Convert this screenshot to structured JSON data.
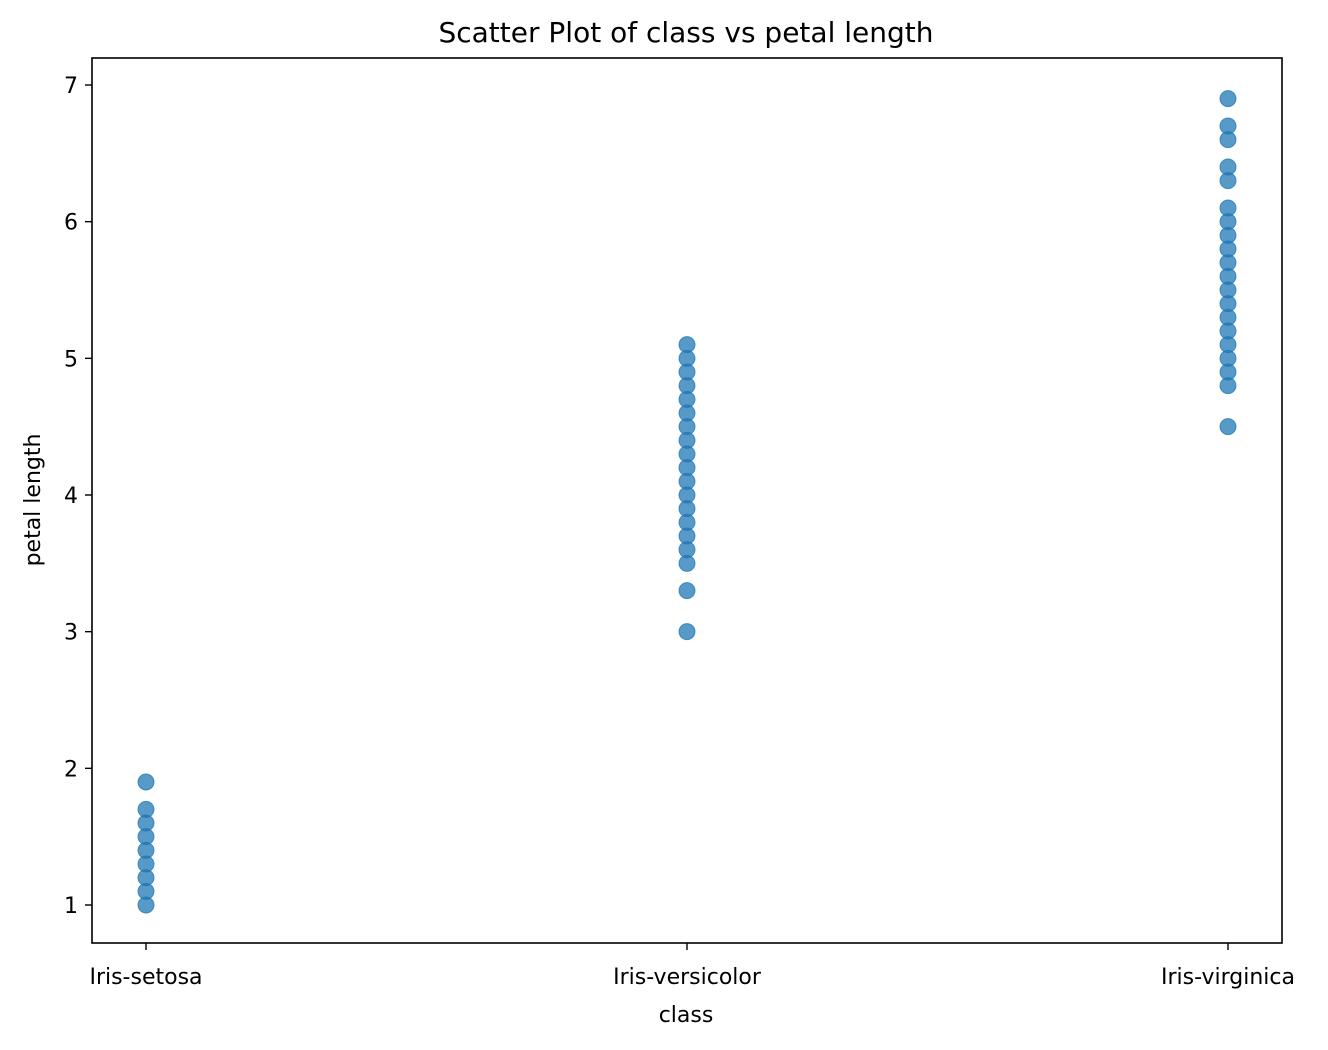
{
  "chart_data": {
    "type": "scatter",
    "title": "Scatter Plot of class vs petal length",
    "xlabel": "class",
    "ylabel": "petal length",
    "categories": [
      "Iris-setosa",
      "Iris-versicolor",
      "Iris-virginica"
    ],
    "yticks": [
      1,
      2,
      3,
      4,
      5,
      6,
      7
    ],
    "ylim": [
      0.7,
      7.2
    ],
    "grid": false,
    "marker_color": "#1f77b4",
    "series": [
      {
        "category": "Iris-setosa",
        "values": [
          1.0,
          1.1,
          1.2,
          1.3,
          1.4,
          1.5,
          1.6,
          1.7,
          1.9
        ]
      },
      {
        "category": "Iris-versicolor",
        "values": [
          3.0,
          3.3,
          3.5,
          3.6,
          3.7,
          3.8,
          3.9,
          4.0,
          4.1,
          4.2,
          4.3,
          4.4,
          4.5,
          4.6,
          4.7,
          4.8,
          4.9,
          5.0,
          5.1
        ]
      },
      {
        "category": "Iris-virginica",
        "values": [
          4.5,
          4.8,
          4.9,
          5.0,
          5.1,
          5.2,
          5.3,
          5.4,
          5.5,
          5.6,
          5.7,
          5.8,
          5.9,
          6.0,
          6.1,
          6.3,
          6.4,
          6.6,
          6.7,
          6.9
        ]
      }
    ]
  }
}
